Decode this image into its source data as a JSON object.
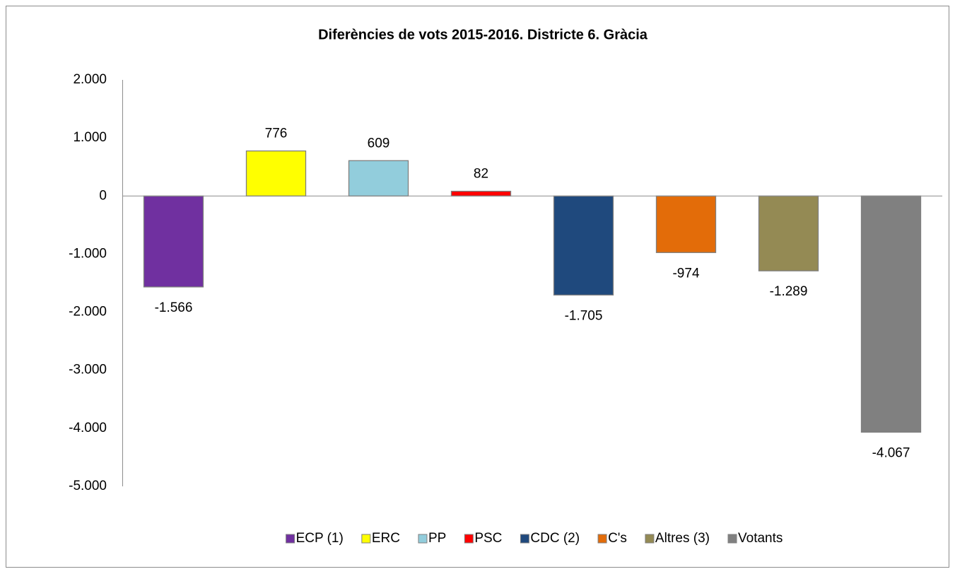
{
  "chart_data": {
    "type": "bar",
    "title": "Diferències de vots 2015-2016. Districte 6. Gràcia",
    "series": [
      {
        "name": "ECP (1)",
        "color": "#7030a0",
        "values": [
          -1566
        ],
        "value_labels": [
          "-1.566"
        ]
      },
      {
        "name": "ERC",
        "color": "#ffff00",
        "values": [
          776
        ]
      },
      {
        "name": "PP",
        "color": "#92cddc",
        "values": [
          609
        ]
      },
      {
        "name": "PSC",
        "color": "#ff0000",
        "values": [
          82
        ]
      },
      {
        "name": "CDC (2)",
        "color": "#1f497d",
        "values": [
          -1705
        ],
        "value_labels": [
          "-1.705"
        ]
      },
      {
        "name": "C's",
        "color": "#e36c09",
        "values": [
          -974
        ]
      },
      {
        "name": "Altres (3)",
        "color": "#948a54",
        "values": [
          -1289
        ],
        "value_labels": [
          "-1.289"
        ]
      },
      {
        "name": "Votants",
        "color": "#808080",
        "values": [
          -4067
        ],
        "value_labels": [
          "-4.067"
        ]
      }
    ],
    "ylim": [
      -5000,
      2000
    ],
    "yticks": [
      {
        "value": -5000,
        "label": "-5.000"
      },
      {
        "value": -4000,
        "label": "-4.000"
      },
      {
        "value": -3000,
        "label": "-3.000"
      },
      {
        "value": -2000,
        "label": "-2.000"
      },
      {
        "value": -1000,
        "label": "-1.000"
      },
      0,
      {
        "value": 1000,
        "label": "1.000"
      },
      {
        "value": 2000,
        "label": "2.000"
      }
    ],
    "grid": false,
    "legend": "bottom"
  }
}
